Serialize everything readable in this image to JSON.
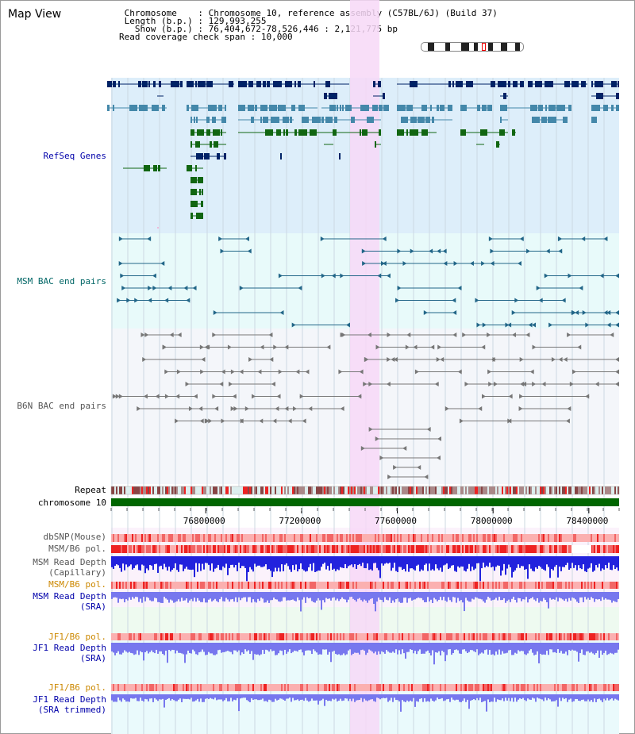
{
  "title": "Map View",
  "info": {
    "chromosome_label": "Chromosome",
    "chromosome_value": "Chromosome 10, reference assembly (C57BL/6J) (Build 37)",
    "length_label": "Length (b.p.)",
    "length_value": "129,993,255",
    "show_label": "Show (b.p.)",
    "show_value": "76,404,672-78,526,446 : 2,121,775 bp",
    "span_label": "Read coverage check span",
    "span_value": "10,000"
  },
  "tracks": {
    "refseq": "RefSeq Genes",
    "msm_bac": "MSM BAC end pairs",
    "b6n_bac": "B6N BAC end pairs",
    "repeat": "Repeat",
    "chromosome": "chromosome 10",
    "dbsnp": "dbSNP(Mouse)",
    "msm_b6_pol_1": "MSM/B6 pol.",
    "msm_depth_cap_1": "MSM Read Depth",
    "msm_depth_cap_2": "(Capillary)",
    "msm_b6_pol_2": "MSM/B6 pol.",
    "msm_depth_sra_1": "MSM Read Depth",
    "msm_depth_sra_2": "(SRA)",
    "jf1_b6_pol_1": "JF1/B6 pol.",
    "jf1_depth_sra_1": "JF1 Read Depth",
    "jf1_depth_sra_2": "(SRA)",
    "jf1_b6_pol_2": "JF1/B6 pol.",
    "jf1_depth_trim_1": "JF1 Read Depth",
    "jf1_depth_trim_2": "(SRA trimmed)"
  },
  "axis": {
    "ticks": [
      "76800000",
      "77200000",
      "77600000",
      "78000000",
      "78400000"
    ],
    "tick_values": [
      76800000,
      77200000,
      77600000,
      78000000,
      78400000
    ],
    "range": [
      76404672,
      78526446
    ]
  },
  "highlight_range": [
    77400000,
    77520000
  ],
  "colors": {
    "refseq_bg": "#ddeefa",
    "bac_bg": "#e8fafa",
    "b6n_bg": "#f4f6fa",
    "highlight": "#f7d8f7",
    "chromosome_bar": "#006600",
    "gene_dark": "#002266",
    "gene_mid": "#4488aa",
    "gene_green": "#116611",
    "msm_depth_cap": "#2222dd",
    "msm_depth_sra": "#7777ee",
    "polymorphism_red": "#ee3333",
    "polymorphism_pink": "#ffaaaa"
  }
}
